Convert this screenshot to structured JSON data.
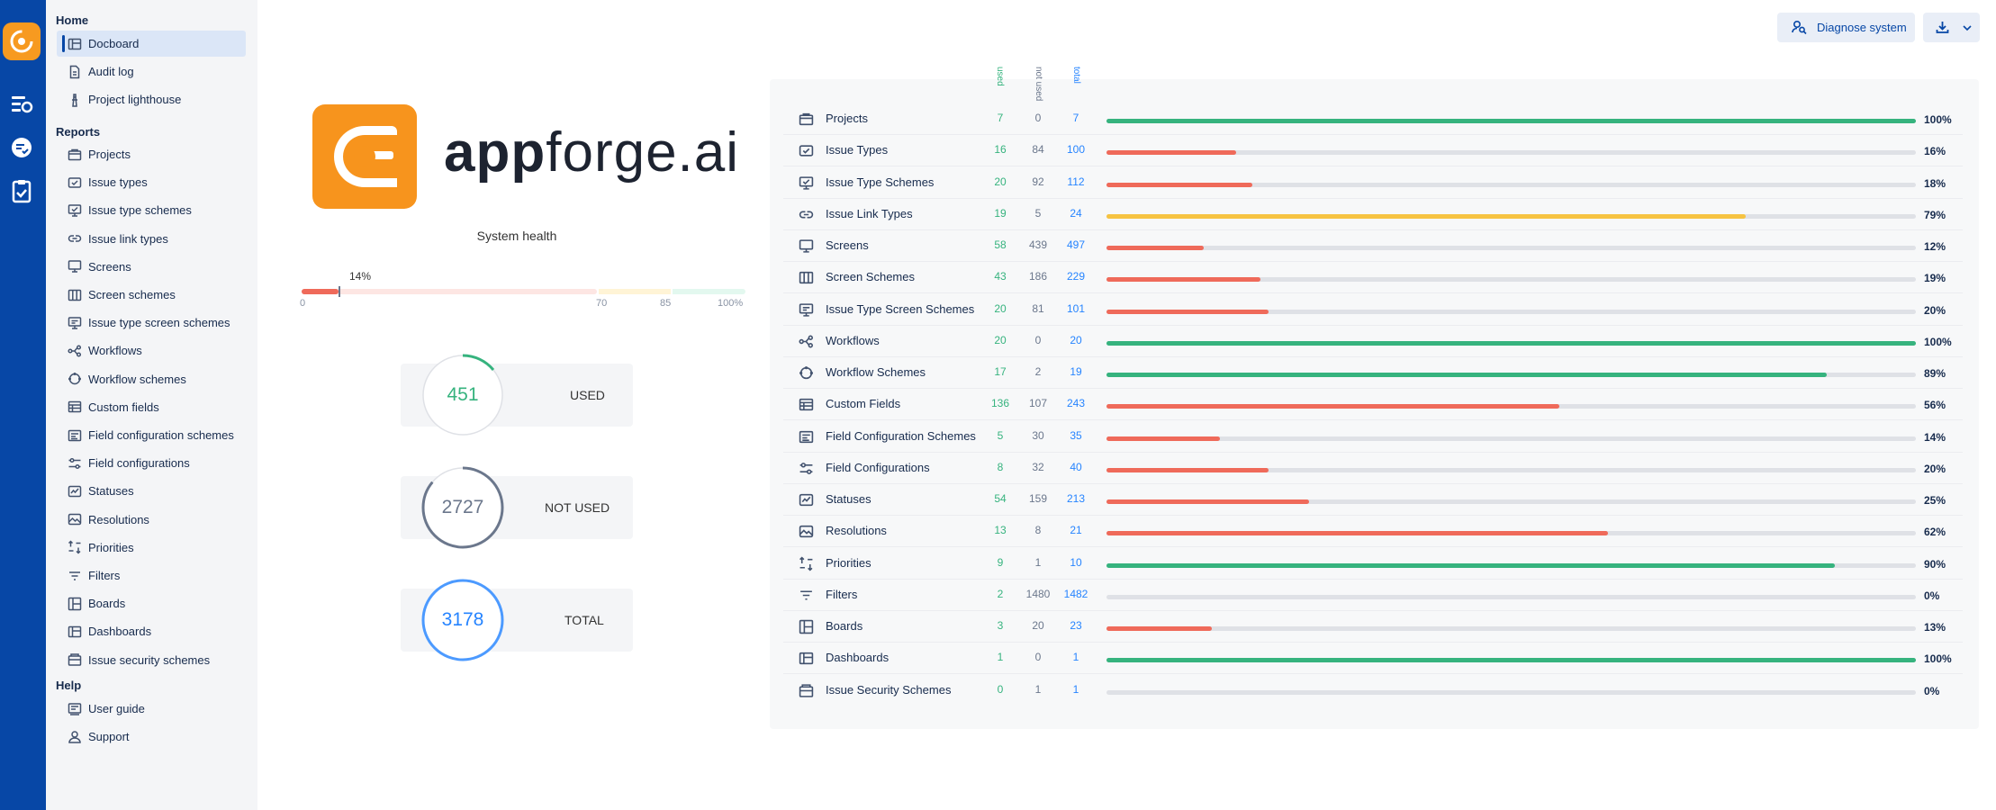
{
  "sidebar": {
    "home_heading": "Home",
    "home_items": [
      {
        "label": "Docboard",
        "icon": "dashboard-icon",
        "active": true
      },
      {
        "label": "Audit log",
        "icon": "document-icon"
      },
      {
        "label": "Project lighthouse",
        "icon": "lighthouse-icon"
      }
    ],
    "reports_heading": "Reports",
    "report_items": [
      {
        "label": "Projects",
        "icon": "folder-icon"
      },
      {
        "label": "Issue types",
        "icon": "issue-type-icon"
      },
      {
        "label": "Issue type schemes",
        "icon": "issue-type-scheme-icon"
      },
      {
        "label": "Issue link types",
        "icon": "link-icon"
      },
      {
        "label": "Screens",
        "icon": "screen-icon"
      },
      {
        "label": "Screen schemes",
        "icon": "columns-icon"
      },
      {
        "label": "Issue type screen schemes",
        "icon": "screen-scheme-icon"
      },
      {
        "label": "Workflows",
        "icon": "workflow-icon"
      },
      {
        "label": "Workflow schemes",
        "icon": "workflow-scheme-icon"
      },
      {
        "label": "Custom fields",
        "icon": "table-icon"
      },
      {
        "label": "Field configuration schemes",
        "icon": "field-config-scheme-icon"
      },
      {
        "label": "Field configurations",
        "icon": "sliders-icon"
      },
      {
        "label": "Statuses",
        "icon": "status-icon"
      },
      {
        "label": "Resolutions",
        "icon": "resolution-icon"
      },
      {
        "label": "Priorities",
        "icon": "priority-icon"
      },
      {
        "label": "Filters",
        "icon": "filter-icon"
      },
      {
        "label": "Boards",
        "icon": "board-icon"
      },
      {
        "label": "Dashboards",
        "icon": "dashboard-icon"
      },
      {
        "label": "Issue security schemes",
        "icon": "security-icon"
      }
    ],
    "help_heading": "Help",
    "help_items": [
      {
        "label": "User guide",
        "icon": "guide-icon"
      },
      {
        "label": "Support",
        "icon": "support-icon"
      }
    ]
  },
  "toolbar": {
    "diagnose_label": "Diagnose system",
    "diagnose_icon": "user-search-icon",
    "download_icon": "download-icon",
    "chevron_icon": "chevron-down-icon"
  },
  "brand": {
    "text_bold": "app",
    "text_regular": "forge.ai"
  },
  "health": {
    "title": "System health",
    "value_label": "14%",
    "value": 14,
    "scale": [
      "0",
      "70",
      "85",
      "100%"
    ]
  },
  "stats": [
    {
      "value": "451",
      "label": "USED",
      "fraction": 0.14,
      "color": "#36b37e",
      "text_color": "#36b37e"
    },
    {
      "value": "2727",
      "label": "NOT USED",
      "fraction": 0.86,
      "color": "#6b778c",
      "text_color": "#6b778c"
    },
    {
      "value": "3178",
      "label": "TOTAL",
      "fraction": 1.0,
      "color": "#4c9aff",
      "text_color": "#2684ff"
    }
  ],
  "table": {
    "headers": {
      "used": "used",
      "not_used": "not used",
      "total": "total"
    },
    "rows": [
      {
        "name": "Projects",
        "icon": "folder-icon",
        "used": "7",
        "not_used": "0",
        "total": "7",
        "pct": "100%",
        "percent": 100
      },
      {
        "name": "Issue Types",
        "icon": "issue-type-icon",
        "used": "16",
        "not_used": "84",
        "total": "100",
        "pct": "16%",
        "percent": 16
      },
      {
        "name": "Issue Type Schemes",
        "icon": "issue-type-scheme-icon",
        "used": "20",
        "not_used": "92",
        "total": "112",
        "pct": "18%",
        "percent": 18
      },
      {
        "name": "Issue Link Types",
        "icon": "link-icon",
        "used": "19",
        "not_used": "5",
        "total": "24",
        "pct": "79%",
        "percent": 79
      },
      {
        "name": "Screens",
        "icon": "screen-icon",
        "used": "58",
        "not_used": "439",
        "total": "497",
        "pct": "12%",
        "percent": 12
      },
      {
        "name": "Screen Schemes",
        "icon": "columns-icon",
        "used": "43",
        "not_used": "186",
        "total": "229",
        "pct": "19%",
        "percent": 19
      },
      {
        "name": "Issue Type Screen Schemes",
        "icon": "screen-scheme-icon",
        "used": "20",
        "not_used": "81",
        "total": "101",
        "pct": "20%",
        "percent": 20
      },
      {
        "name": "Workflows",
        "icon": "workflow-icon",
        "used": "20",
        "not_used": "0",
        "total": "20",
        "pct": "100%",
        "percent": 100
      },
      {
        "name": "Workflow Schemes",
        "icon": "workflow-scheme-icon",
        "used": "17",
        "not_used": "2",
        "total": "19",
        "pct": "89%",
        "percent": 89
      },
      {
        "name": "Custom Fields",
        "icon": "table-icon",
        "used": "136",
        "not_used": "107",
        "total": "243",
        "pct": "56%",
        "percent": 56
      },
      {
        "name": "Field Configuration Schemes",
        "icon": "field-config-scheme-icon",
        "used": "5",
        "not_used": "30",
        "total": "35",
        "pct": "14%",
        "percent": 14
      },
      {
        "name": "Field Configurations",
        "icon": "sliders-icon",
        "used": "8",
        "not_used": "32",
        "total": "40",
        "pct": "20%",
        "percent": 20
      },
      {
        "name": "Statuses",
        "icon": "status-icon",
        "used": "54",
        "not_used": "159",
        "total": "213",
        "pct": "25%",
        "percent": 25
      },
      {
        "name": "Resolutions",
        "icon": "resolution-icon",
        "used": "13",
        "not_used": "8",
        "total": "21",
        "pct": "62%",
        "percent": 62
      },
      {
        "name": "Priorities",
        "icon": "priority-icon",
        "used": "9",
        "not_used": "1",
        "total": "10",
        "pct": "90%",
        "percent": 90
      },
      {
        "name": "Filters",
        "icon": "filter-icon",
        "used": "2",
        "not_used": "1480",
        "total": "1482",
        "pct": "0%",
        "percent": 0
      },
      {
        "name": "Boards",
        "icon": "board-icon",
        "used": "3",
        "not_used": "20",
        "total": "23",
        "pct": "13%",
        "percent": 13
      },
      {
        "name": "Dashboards",
        "icon": "dashboard-icon",
        "used": "1",
        "not_used": "0",
        "total": "1",
        "pct": "100%",
        "percent": 100
      },
      {
        "name": "Issue Security Schemes",
        "icon": "security-icon",
        "used": "0",
        "not_used": "1",
        "total": "1",
        "pct": "0%",
        "percent": 0
      }
    ]
  },
  "colors": {
    "rail": "#0747a6",
    "accent_orange": "#f79a20",
    "good": "#36b37e",
    "warn": "#f6c342",
    "bad": "#ef6a5a",
    "used": "#36b37e",
    "not_used": "#6b778c",
    "total": "#2684ff"
  }
}
